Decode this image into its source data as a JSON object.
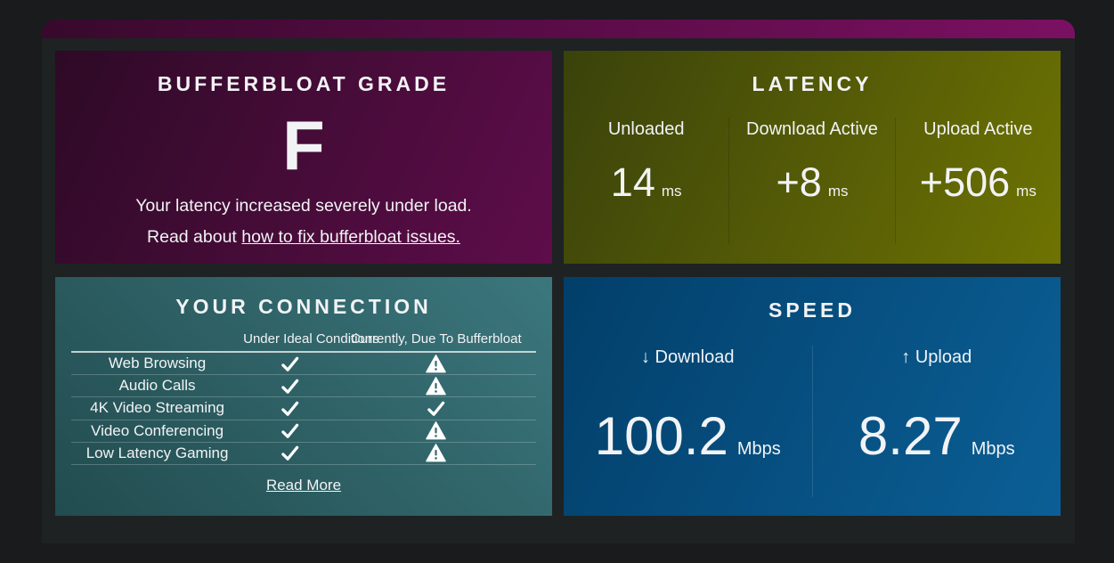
{
  "colors": {
    "page_bg": "#191b1d",
    "panel_bg": "#1e2223",
    "header_bar_from": "#38092c",
    "header_bar_to": "#7b1062",
    "grade_card_from": "#2e0a26",
    "grade_card_to": "#5e0d4a",
    "latency_card_from": "#3a420b",
    "latency_card_to": "#6e7302",
    "connection_card_from": "#224c4f",
    "connection_card_to": "#3b777d",
    "speed_card_from": "#023f6a",
    "speed_card_to": "#0b5f96",
    "text": "#f2f3f5"
  },
  "grade_card": {
    "title": "BUFFERBLOAT GRADE",
    "grade": "F",
    "description": "Your latency increased severely under load.",
    "link_prefix": "Read about ",
    "link_text": "how to fix bufferbloat issues."
  },
  "latency_card": {
    "title": "LATENCY",
    "columns": [
      {
        "label": "Unloaded",
        "value": "14",
        "unit": "ms"
      },
      {
        "label": "Download Active",
        "value": "+8",
        "unit": "ms"
      },
      {
        "label": "Upload Active",
        "value": "+506",
        "unit": "ms"
      }
    ]
  },
  "connection_card": {
    "title": "YOUR CONNECTION",
    "column_headers": [
      "Under Ideal Conditions",
      "Currently, Due To Bufferbloat"
    ],
    "rows": [
      {
        "label": "Web Browsing",
        "ideal": "check",
        "current": "warning"
      },
      {
        "label": "Audio Calls",
        "ideal": "check",
        "current": "warning"
      },
      {
        "label": "4K Video Streaming",
        "ideal": "check",
        "current": "check"
      },
      {
        "label": "Video Conferencing",
        "ideal": "check",
        "current": "warning"
      },
      {
        "label": "Low Latency Gaming",
        "ideal": "check",
        "current": "warning"
      }
    ],
    "read_more": "Read More"
  },
  "speed_card": {
    "title": "SPEED",
    "columns": [
      {
        "arrow": "↓",
        "label": "Download",
        "value": "100.2",
        "unit": "Mbps"
      },
      {
        "arrow": "↑",
        "label": "Upload",
        "value": "8.27",
        "unit": "Mbps"
      }
    ]
  }
}
